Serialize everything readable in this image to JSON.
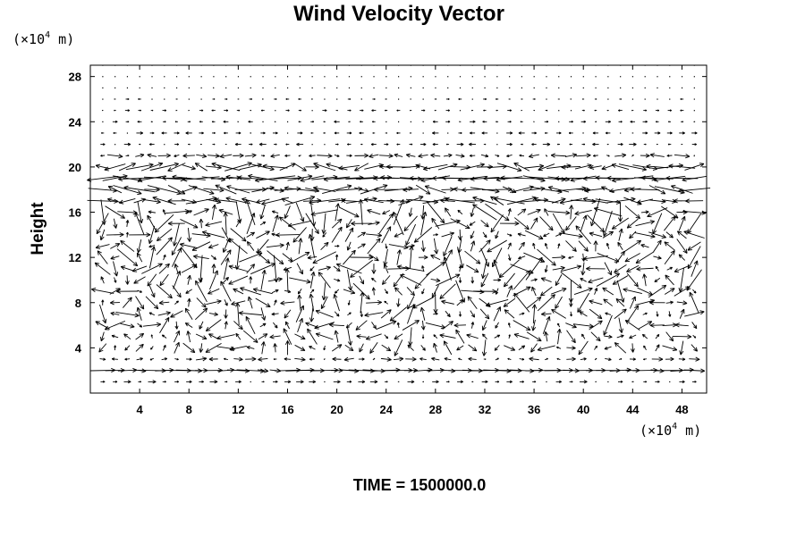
{
  "chart_data": {
    "type": "vector-field",
    "title": "Wind Velocity Vector",
    "ylabel": "Height",
    "x_unit": {
      "prefix": "(×10",
      "exp": "4",
      "suffix": " m)"
    },
    "y_unit": {
      "prefix": "(×10",
      "exp": "4",
      "suffix": " m)"
    },
    "xlim": [
      0,
      50
    ],
    "ylim": [
      0,
      29
    ],
    "x_ticks": [
      4,
      8,
      12,
      16,
      20,
      24,
      28,
      32,
      36,
      40,
      44,
      48
    ],
    "y_ticks": [
      4,
      8,
      12,
      16,
      20,
      24,
      28
    ],
    "grid": false,
    "time_label": "TIME = 1500000.0",
    "vector_layers": [
      {
        "y": 1,
        "pattern": "weak-east",
        "scale": 0.6
      },
      {
        "y": 2,
        "pattern": "east",
        "scale": 1.8
      },
      {
        "y": 3,
        "pattern": "mixed",
        "scale": 1.0
      },
      {
        "y": 4,
        "pattern": "turbulent",
        "scale": 1.6
      },
      {
        "y": 5,
        "pattern": "turbulent",
        "scale": 1.6
      },
      {
        "y": 6,
        "pattern": "turbulent",
        "scale": 1.8
      },
      {
        "y": 7,
        "pattern": "turbulent",
        "scale": 2.0
      },
      {
        "y": 8,
        "pattern": "turbulent",
        "scale": 2.0
      },
      {
        "y": 9,
        "pattern": "turbulent",
        "scale": 2.0
      },
      {
        "y": 10,
        "pattern": "turbulent",
        "scale": 2.2
      },
      {
        "y": 11,
        "pattern": "turbulent",
        "scale": 2.4
      },
      {
        "y": 12,
        "pattern": "turbulent",
        "scale": 2.2
      },
      {
        "y": 13,
        "pattern": "turbulent",
        "scale": 2.0
      },
      {
        "y": 14,
        "pattern": "turbulent",
        "scale": 2.0
      },
      {
        "y": 15,
        "pattern": "turbulent",
        "scale": 2.2
      },
      {
        "y": 16,
        "pattern": "turbulent",
        "scale": 2.4
      },
      {
        "y": 17,
        "pattern": "shear",
        "scale": 2.6
      },
      {
        "y": 18,
        "pattern": "shear",
        "scale": 2.8
      },
      {
        "y": 19,
        "pattern": "jet",
        "scale": 3.2
      },
      {
        "y": 20,
        "pattern": "shear",
        "scale": 2.4
      },
      {
        "y": 21,
        "pattern": "mixed",
        "scale": 1.4
      },
      {
        "y": 22,
        "pattern": "weak-mixed",
        "scale": 0.7
      },
      {
        "y": 23,
        "pattern": "weak-mixed",
        "scale": 0.6
      },
      {
        "y": 24,
        "pattern": "weak-mixed",
        "scale": 0.5
      },
      {
        "y": 25,
        "pattern": "weak-mixed",
        "scale": 0.4
      },
      {
        "y": 26,
        "pattern": "weak-mixed",
        "scale": 0.3
      },
      {
        "y": 27,
        "pattern": "calm",
        "scale": 0.2
      },
      {
        "y": 28,
        "pattern": "calm",
        "scale": 0.15
      },
      {
        "y": 29,
        "pattern": "calm",
        "scale": 0.1
      }
    ],
    "x_spacing": 1,
    "colors": {
      "axis": "#000000",
      "vector": "#000000",
      "background": "#ffffff"
    }
  }
}
